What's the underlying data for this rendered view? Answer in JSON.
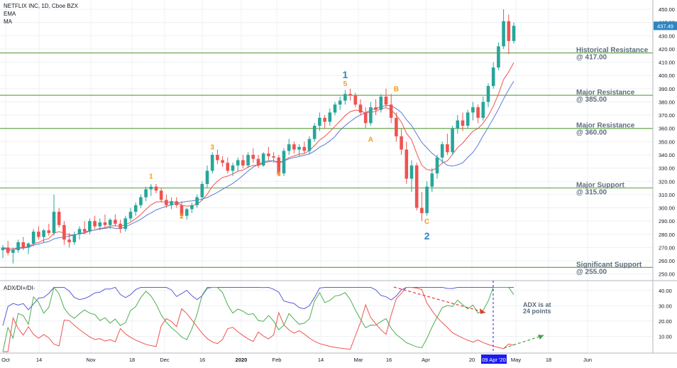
{
  "header": {
    "symbol": "NETFLIX INC, 1D, Cboe BZX",
    "ema_label": "EMA",
    "ma_label": "MA"
  },
  "price_axis": {
    "ticks": [
      "450.00",
      "440.00",
      "430.00",
      "420.00",
      "410.00",
      "400.00",
      "390.00",
      "380.00",
      "370.00",
      "360.00",
      "350.00",
      "340.00",
      "330.00",
      "320.00",
      "310.00",
      "300.00",
      "290.00",
      "280.00",
      "270.00",
      "260.00",
      "250.00"
    ],
    "last_price": "437.49",
    "last_price_color": "#2e86c1"
  },
  "levels": [
    {
      "line1": "Historical Resistance",
      "line2": "@ 417.00",
      "value": 417,
      "color": "#6aa84f"
    },
    {
      "line1": "Major Resistance",
      "line2": "@ 385.00",
      "value": 385,
      "color": "#6aa84f"
    },
    {
      "line1": "Major Resistance",
      "line2": "@ 360.00",
      "value": 360,
      "color": "#6aa84f"
    },
    {
      "line1": "Major Support",
      "line2": "@ 315.00",
      "value": 315,
      "color": "#6aa84f"
    },
    {
      "line1": "Significant Support",
      "line2": "@ 255.00",
      "value": 255,
      "color": "#6aa84f"
    }
  ],
  "waves": [
    {
      "label": "1",
      "color": "orange",
      "value": 322
    },
    {
      "label": "2",
      "color": "orange",
      "value": 292
    },
    {
      "label": "3",
      "color": "orange",
      "value": 344
    },
    {
      "label": "4",
      "color": "orange",
      "value": 324
    },
    {
      "label": "5",
      "color": "orange",
      "value": 392
    },
    {
      "label": "1",
      "color": "blue",
      "value": 398
    },
    {
      "label": "A",
      "color": "orange",
      "value": 350
    },
    {
      "label": "B",
      "color": "orange",
      "value": 388
    },
    {
      "label": "C",
      "color": "orange",
      "value": 288
    },
    {
      "label": "2",
      "color": "blue",
      "value": 276
    }
  ],
  "time_axis": {
    "labels": [
      "Oct",
      "14",
      "Nov",
      "18",
      "Dec",
      "16",
      "2020",
      "Feb",
      "14",
      "Mar",
      "16",
      "Apr",
      "20",
      "May",
      "18",
      "Jun"
    ],
    "highlight_label": "09 Apr '20"
  },
  "indicator": {
    "title": "ADX/DI+/DI-",
    "ticks": [
      "40.00",
      "30.00",
      "20.00",
      "10.00"
    ],
    "note_line1": "ADX is at",
    "note_line2": "24 points",
    "colors": {
      "adx": "#5b5bd6",
      "di_plus": "#4caf50",
      "di_minus": "#ef5350"
    }
  },
  "chart_data": {
    "type": "candlestick",
    "title": "NETFLIX INC, 1D, Cboe BZX",
    "ylim": [
      245,
      457
    ],
    "x_dates_approx": [
      "2019-10-01",
      "2020-04-21"
    ],
    "candles": [
      {
        "o": 268,
        "h": 272,
        "l": 262,
        "c": 270
      },
      {
        "o": 270,
        "h": 275,
        "l": 264,
        "c": 266
      },
      {
        "o": 266,
        "h": 270,
        "l": 258,
        "c": 268
      },
      {
        "o": 268,
        "h": 276,
        "l": 266,
        "c": 274
      },
      {
        "o": 274,
        "h": 278,
        "l": 268,
        "c": 270
      },
      {
        "o": 270,
        "h": 274,
        "l": 265,
        "c": 273
      },
      {
        "o": 273,
        "h": 284,
        "l": 271,
        "c": 282
      },
      {
        "o": 282,
        "h": 286,
        "l": 276,
        "c": 278
      },
      {
        "o": 278,
        "h": 284,
        "l": 274,
        "c": 283
      },
      {
        "o": 283,
        "h": 288,
        "l": 279,
        "c": 281
      },
      {
        "o": 281,
        "h": 310,
        "l": 279,
        "c": 297
      },
      {
        "o": 297,
        "h": 300,
        "l": 285,
        "c": 287
      },
      {
        "o": 287,
        "h": 290,
        "l": 272,
        "c": 276
      },
      {
        "o": 276,
        "h": 281,
        "l": 270,
        "c": 274
      },
      {
        "o": 274,
        "h": 282,
        "l": 272,
        "c": 280
      },
      {
        "o": 280,
        "h": 286,
        "l": 276,
        "c": 284
      },
      {
        "o": 284,
        "h": 290,
        "l": 280,
        "c": 282
      },
      {
        "o": 282,
        "h": 292,
        "l": 280,
        "c": 290
      },
      {
        "o": 290,
        "h": 294,
        "l": 284,
        "c": 286
      },
      {
        "o": 286,
        "h": 292,
        "l": 283,
        "c": 289
      },
      {
        "o": 289,
        "h": 295,
        "l": 285,
        "c": 287
      },
      {
        "o": 287,
        "h": 292,
        "l": 284,
        "c": 291
      },
      {
        "o": 291,
        "h": 295,
        "l": 286,
        "c": 288
      },
      {
        "o": 288,
        "h": 291,
        "l": 281,
        "c": 284
      },
      {
        "o": 284,
        "h": 294,
        "l": 282,
        "c": 292
      },
      {
        "o": 292,
        "h": 300,
        "l": 290,
        "c": 297
      },
      {
        "o": 297,
        "h": 304,
        "l": 294,
        "c": 302
      },
      {
        "o": 302,
        "h": 310,
        "l": 300,
        "c": 308
      },
      {
        "o": 308,
        "h": 316,
        "l": 305,
        "c": 314
      },
      {
        "o": 314,
        "h": 318,
        "l": 309,
        "c": 316
      },
      {
        "o": 316,
        "h": 318,
        "l": 311,
        "c": 313
      },
      {
        "o": 313,
        "h": 315,
        "l": 304,
        "c": 306
      },
      {
        "o": 306,
        "h": 310,
        "l": 300,
        "c": 302
      },
      {
        "o": 302,
        "h": 308,
        "l": 299,
        "c": 305
      },
      {
        "o": 305,
        "h": 308,
        "l": 300,
        "c": 302
      },
      {
        "o": 302,
        "h": 305,
        "l": 292,
        "c": 294
      },
      {
        "o": 294,
        "h": 300,
        "l": 291,
        "c": 299
      },
      {
        "o": 299,
        "h": 304,
        "l": 296,
        "c": 302
      },
      {
        "o": 302,
        "h": 310,
        "l": 300,
        "c": 308
      },
      {
        "o": 308,
        "h": 320,
        "l": 306,
        "c": 318
      },
      {
        "o": 318,
        "h": 332,
        "l": 315,
        "c": 328
      },
      {
        "o": 328,
        "h": 342,
        "l": 326,
        "c": 340
      },
      {
        "o": 340,
        "h": 344,
        "l": 333,
        "c": 336
      },
      {
        "o": 336,
        "h": 339,
        "l": 331,
        "c": 334
      },
      {
        "o": 334,
        "h": 338,
        "l": 326,
        "c": 328
      },
      {
        "o": 328,
        "h": 334,
        "l": 324,
        "c": 332
      },
      {
        "o": 332,
        "h": 338,
        "l": 328,
        "c": 336
      },
      {
        "o": 336,
        "h": 340,
        "l": 330,
        "c": 332
      },
      {
        "o": 332,
        "h": 342,
        "l": 330,
        "c": 340
      },
      {
        "o": 340,
        "h": 345,
        "l": 334,
        "c": 337
      },
      {
        "o": 337,
        "h": 340,
        "l": 330,
        "c": 332
      },
      {
        "o": 332,
        "h": 342,
        "l": 331,
        "c": 341
      },
      {
        "o": 341,
        "h": 346,
        "l": 336,
        "c": 339
      },
      {
        "o": 339,
        "h": 342,
        "l": 334,
        "c": 338
      },
      {
        "o": 338,
        "h": 340,
        "l": 324,
        "c": 326
      },
      {
        "o": 326,
        "h": 345,
        "l": 324,
        "c": 343
      },
      {
        "o": 343,
        "h": 352,
        "l": 340,
        "c": 348
      },
      {
        "o": 348,
        "h": 350,
        "l": 341,
        "c": 344
      },
      {
        "o": 344,
        "h": 348,
        "l": 339,
        "c": 346
      },
      {
        "o": 346,
        "h": 350,
        "l": 341,
        "c": 343
      },
      {
        "o": 343,
        "h": 354,
        "l": 341,
        "c": 352
      },
      {
        "o": 352,
        "h": 364,
        "l": 350,
        "c": 362
      },
      {
        "o": 362,
        "h": 372,
        "l": 358,
        "c": 368
      },
      {
        "o": 368,
        "h": 370,
        "l": 360,
        "c": 365
      },
      {
        "o": 365,
        "h": 375,
        "l": 362,
        "c": 372
      },
      {
        "o": 372,
        "h": 380,
        "l": 370,
        "c": 378
      },
      {
        "o": 378,
        "h": 384,
        "l": 374,
        "c": 381
      },
      {
        "o": 381,
        "h": 389,
        "l": 378,
        "c": 386
      },
      {
        "o": 386,
        "h": 390,
        "l": 381,
        "c": 385
      },
      {
        "o": 385,
        "h": 387,
        "l": 376,
        "c": 378
      },
      {
        "o": 378,
        "h": 382,
        "l": 370,
        "c": 372
      },
      {
        "o": 372,
        "h": 376,
        "l": 360,
        "c": 364
      },
      {
        "o": 364,
        "h": 380,
        "l": 362,
        "c": 376
      },
      {
        "o": 376,
        "h": 382,
        "l": 370,
        "c": 374
      },
      {
        "o": 374,
        "h": 386,
        "l": 372,
        "c": 384
      },
      {
        "o": 384,
        "h": 390,
        "l": 376,
        "c": 378
      },
      {
        "o": 378,
        "h": 386,
        "l": 364,
        "c": 368
      },
      {
        "o": 368,
        "h": 372,
        "l": 350,
        "c": 354
      },
      {
        "o": 354,
        "h": 360,
        "l": 340,
        "c": 344
      },
      {
        "o": 344,
        "h": 350,
        "l": 318,
        "c": 322
      },
      {
        "o": 322,
        "h": 336,
        "l": 312,
        "c": 332
      },
      {
        "o": 332,
        "h": 334,
        "l": 298,
        "c": 300
      },
      {
        "o": 300,
        "h": 312,
        "l": 290,
        "c": 296
      },
      {
        "o": 296,
        "h": 320,
        "l": 294,
        "c": 316
      },
      {
        "o": 316,
        "h": 330,
        "l": 312,
        "c": 326
      },
      {
        "o": 326,
        "h": 340,
        "l": 322,
        "c": 338
      },
      {
        "o": 338,
        "h": 350,
        "l": 334,
        "c": 348
      },
      {
        "o": 348,
        "h": 356,
        "l": 340,
        "c": 342
      },
      {
        "o": 342,
        "h": 362,
        "l": 340,
        "c": 360
      },
      {
        "o": 360,
        "h": 370,
        "l": 356,
        "c": 366
      },
      {
        "o": 366,
        "h": 372,
        "l": 358,
        "c": 362
      },
      {
        "o": 362,
        "h": 374,
        "l": 360,
        "c": 372
      },
      {
        "o": 372,
        "h": 380,
        "l": 366,
        "c": 376
      },
      {
        "o": 376,
        "h": 378,
        "l": 364,
        "c": 368
      },
      {
        "o": 368,
        "h": 384,
        "l": 366,
        "c": 380
      },
      {
        "o": 380,
        "h": 394,
        "l": 376,
        "c": 392
      },
      {
        "o": 392,
        "h": 410,
        "l": 390,
        "c": 406
      },
      {
        "o": 406,
        "h": 425,
        "l": 404,
        "c": 422
      },
      {
        "o": 422,
        "h": 450,
        "l": 420,
        "c": 441
      },
      {
        "o": 441,
        "h": 446,
        "l": 416,
        "c": 426
      },
      {
        "o": 426,
        "h": 440,
        "l": 424,
        "c": 437.49
      }
    ]
  }
}
